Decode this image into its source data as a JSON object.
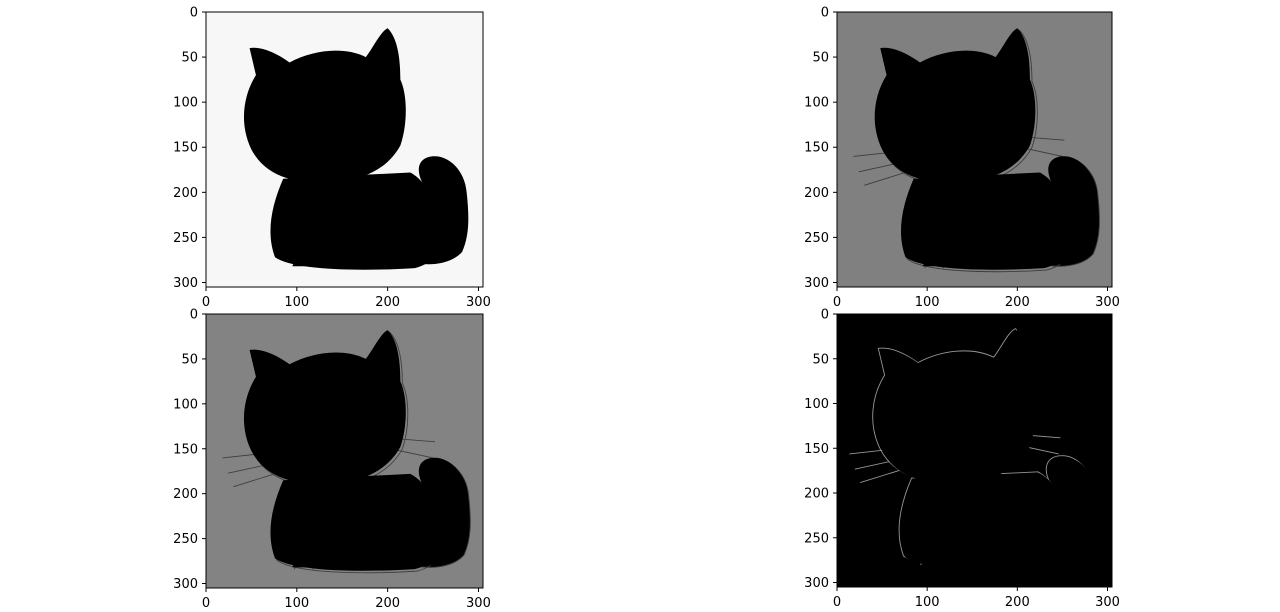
{
  "figure": {
    "layout": "2x2 image subplots",
    "background": "#ffffff",
    "axis_color": "#000000"
  },
  "chart_data": [
    {
      "type": "image",
      "panel": "top-left",
      "image_description": "grayscale cartoon cat (original)",
      "xlim": [
        0,
        305
      ],
      "ylim": [
        305,
        0
      ],
      "xticks": [
        0,
        100,
        200,
        300
      ],
      "yticks": [
        0,
        50,
        100,
        150,
        200,
        250,
        300
      ],
      "xtick_labels": [
        "0",
        "100",
        "200",
        "300"
      ],
      "ytick_labels": [
        "0",
        "50",
        "100",
        "150",
        "200",
        "250",
        "300"
      ],
      "colormap": "gray",
      "image_background": "#f7f7f7",
      "grid": false
    },
    {
      "type": "image",
      "panel": "top-right",
      "image_description": "embossed gradient of the cat (horizontal edges)",
      "xlim": [
        0,
        305
      ],
      "ylim": [
        305,
        0
      ],
      "xticks": [
        0,
        100,
        200,
        300
      ],
      "yticks": [
        0,
        50,
        100,
        150,
        200,
        250,
        300
      ],
      "xtick_labels": [
        "0",
        "100",
        "200",
        "300"
      ],
      "ytick_labels": [
        "0",
        "50",
        "100",
        "150",
        "200",
        "250",
        "300"
      ],
      "colormap": "gray",
      "image_background": "#808080",
      "grid": false
    },
    {
      "type": "image",
      "panel": "bottom-left",
      "image_description": "embossed gradient of the cat (vertical edges)",
      "xlim": [
        0,
        305
      ],
      "ylim": [
        305,
        0
      ],
      "xticks": [
        0,
        100,
        200,
        300
      ],
      "yticks": [
        0,
        50,
        100,
        150,
        200,
        250,
        300
      ],
      "xtick_labels": [
        "0",
        "100",
        "200",
        "300"
      ],
      "ytick_labels": [
        "0",
        "50",
        "100",
        "150",
        "200",
        "250",
        "300"
      ],
      "colormap": "gray",
      "image_background": "#838383",
      "grid": false
    },
    {
      "type": "image",
      "panel": "bottom-right",
      "image_description": "edge magnitude of the cat (white edges on black)",
      "xlim": [
        0,
        305
      ],
      "ylim": [
        305,
        0
      ],
      "xticks": [
        0,
        100,
        200,
        300
      ],
      "yticks": [
        0,
        50,
        100,
        150,
        200,
        250,
        300
      ],
      "xtick_labels": [
        "0",
        "100",
        "200",
        "300"
      ],
      "ytick_labels": [
        "0",
        "50",
        "100",
        "150",
        "200",
        "250",
        "300"
      ],
      "colormap": "gray",
      "image_background": "#000000",
      "grid": false
    }
  ]
}
